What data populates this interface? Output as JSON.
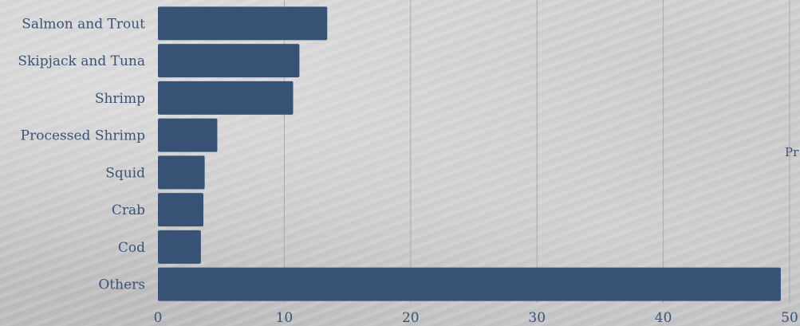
{
  "chart_data": {
    "type": "bar",
    "orientation": "horizontal",
    "categories": [
      "Salmon and Trout",
      "Skipjack and Tuna",
      "Shrimp",
      "Processed Shrimp",
      "Squid",
      "Crab",
      "Cod",
      "Others"
    ],
    "values": [
      13.4,
      11.2,
      10.7,
      4.7,
      3.7,
      3.6,
      3.4,
      49.3
    ],
    "xlim": [
      0,
      50
    ],
    "xticks": [
      0,
      10,
      20,
      30,
      40,
      50
    ],
    "grid": "vertical",
    "bar_color": "#385275",
    "title": "",
    "xlabel": "",
    "ylabel": "",
    "side_text": "Pr"
  }
}
